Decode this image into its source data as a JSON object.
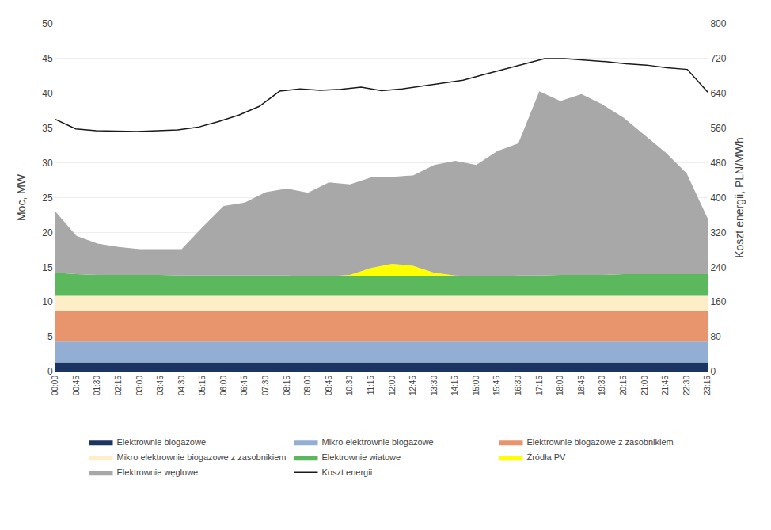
{
  "chart_data": {
    "type": "area",
    "stacked": true,
    "grid": true,
    "legend": "bottom",
    "x": [
      0,
      1,
      2,
      3,
      4,
      5,
      6,
      7,
      8,
      9,
      10,
      11,
      12,
      13,
      14,
      15,
      16,
      17,
      18,
      19,
      20,
      21,
      22,
      23,
      24,
      25,
      26,
      27,
      28,
      29,
      30,
      31
    ],
    "xlim": [
      0,
      31
    ],
    "xticks": [
      {
        "value": 0,
        "label": "00:00"
      },
      {
        "value": 1,
        "label": "00:45"
      },
      {
        "value": 2,
        "label": "01:30"
      },
      {
        "value": 3,
        "label": "02:15"
      },
      {
        "value": 4,
        "label": "03:00"
      },
      {
        "value": 5,
        "label": "03:45"
      },
      {
        "value": 6,
        "label": "04:30"
      },
      {
        "value": 7,
        "label": "05:15"
      },
      {
        "value": 8,
        "label": "06:00"
      },
      {
        "value": 9,
        "label": "06:45"
      },
      {
        "value": 10,
        "label": "07:30"
      },
      {
        "value": 11,
        "label": "08:15"
      },
      {
        "value": 12,
        "label": "09:00"
      },
      {
        "value": 13,
        "label": "09:45"
      },
      {
        "value": 14,
        "label": "10:30"
      },
      {
        "value": 15,
        "label": "11:15"
      },
      {
        "value": 16,
        "label": "12:00"
      },
      {
        "value": 17,
        "label": "12:45"
      },
      {
        "value": 18,
        "label": "13:30"
      },
      {
        "value": 19,
        "label": "14:15"
      },
      {
        "value": 20,
        "label": "15:00"
      },
      {
        "value": 21,
        "label": "15:45"
      },
      {
        "value": 22,
        "label": "16:30"
      },
      {
        "value": 23,
        "label": "17:15"
      },
      {
        "value": 24,
        "label": "18:00"
      },
      {
        "value": 25,
        "label": "18:45"
      },
      {
        "value": 26,
        "label": "19:30"
      },
      {
        "value": 27,
        "label": "20:15"
      },
      {
        "value": 28,
        "label": "21:00"
      },
      {
        "value": 29,
        "label": "21:45"
      },
      {
        "value": 30,
        "label": "22:30"
      },
      {
        "value": 31,
        "label": "23:15"
      }
    ],
    "y_label": "Moc, MW",
    "ylim": [
      0,
      50
    ],
    "yticks": [
      0,
      5,
      10,
      15,
      20,
      25,
      30,
      35,
      40,
      45,
      50
    ],
    "y2_label": "Koszt energii, PLN/MWh",
    "y2lim": [
      0,
      800
    ],
    "y2ticks": [
      0,
      80,
      160,
      240,
      320,
      400,
      480,
      560,
      640,
      720,
      800
    ],
    "series": [
      {
        "name": "Elektrownie biogazowe",
        "color": "#1c3461",
        "values": [
          1.3,
          1.3,
          1.3,
          1.3,
          1.3,
          1.3,
          1.3,
          1.3,
          1.3,
          1.3,
          1.3,
          1.3,
          1.3,
          1.3,
          1.3,
          1.3,
          1.3,
          1.3,
          1.3,
          1.3,
          1.3,
          1.3,
          1.3,
          1.3,
          1.3,
          1.3,
          1.3,
          1.3,
          1.3,
          1.3,
          1.3,
          1.3
        ]
      },
      {
        "name": "Mikro elektrownie biogazowe",
        "color": "#92aed3",
        "values": [
          3.0,
          3.0,
          3.0,
          3.0,
          3.0,
          3.0,
          3.0,
          3.0,
          3.0,
          3.0,
          3.0,
          3.0,
          3.0,
          3.0,
          3.0,
          3.0,
          3.0,
          3.0,
          3.0,
          3.0,
          3.0,
          3.0,
          3.0,
          3.0,
          3.0,
          3.0,
          3.0,
          3.0,
          3.0,
          3.0,
          3.0,
          3.0
        ]
      },
      {
        "name": "Elektrownie biogazowe z zasobnikiem",
        "color": "#e8956d",
        "values": [
          4.5,
          4.5,
          4.5,
          4.5,
          4.5,
          4.5,
          4.5,
          4.5,
          4.5,
          4.5,
          4.5,
          4.5,
          4.5,
          4.5,
          4.5,
          4.5,
          4.5,
          4.5,
          4.5,
          4.5,
          4.5,
          4.5,
          4.5,
          4.5,
          4.5,
          4.5,
          4.5,
          4.5,
          4.5,
          4.5,
          4.5,
          4.5
        ]
      },
      {
        "name": "Mikro elektrownie biogazowe z zasobnikiem",
        "color": "#fdeec8",
        "values": [
          2.2,
          2.2,
          2.2,
          2.2,
          2.2,
          2.2,
          2.2,
          2.2,
          2.2,
          2.2,
          2.2,
          2.2,
          2.2,
          2.2,
          2.2,
          2.2,
          2.2,
          2.2,
          2.2,
          2.2,
          2.2,
          2.2,
          2.2,
          2.2,
          2.2,
          2.2,
          2.2,
          2.2,
          2.2,
          2.2,
          2.2,
          2.2
        ]
      },
      {
        "name": "Elektrownie wiatowe",
        "color": "#5cb85c",
        "values": [
          3.2,
          3.0,
          2.9,
          2.9,
          2.9,
          2.9,
          2.8,
          2.8,
          2.8,
          2.8,
          2.8,
          2.8,
          2.7,
          2.7,
          2.7,
          2.7,
          2.7,
          2.7,
          2.7,
          2.7,
          2.7,
          2.7,
          2.8,
          2.8,
          2.9,
          2.9,
          2.9,
          3.0,
          3.0,
          3.0,
          3.0,
          3.0
        ]
      },
      {
        "name": "Źródła PV",
        "color": "#ffff00",
        "values": [
          0.0,
          0.0,
          0.0,
          0.0,
          0.0,
          0.0,
          0.0,
          0.0,
          0.0,
          0.0,
          0.0,
          0.0,
          0.0,
          0.0,
          0.2,
          1.2,
          1.8,
          1.5,
          0.5,
          0.1,
          0.0,
          0.0,
          0.0,
          0.0,
          0.0,
          0.0,
          0.0,
          0.0,
          0.0,
          0.0,
          0.0,
          0.0
        ]
      },
      {
        "name": "Elektrownie węglowe",
        "color": "#a8a8a8",
        "values": [
          8.8,
          5.5,
          4.5,
          4.0,
          3.7,
          3.7,
          3.8,
          7.0,
          10.0,
          10.5,
          12.0,
          12.5,
          12.0,
          13.5,
          13.0,
          13.0,
          12.5,
          13.0,
          15.5,
          16.5,
          16.0,
          18.0,
          19.0,
          26.5,
          25.0,
          26.0,
          24.5,
          22.5,
          20.0,
          17.5,
          14.5,
          8.0
        ]
      },
      {
        "name": "Koszt energii",
        "color": "#1a1a1a",
        "type": "line",
        "axis": "y2",
        "x": [
          0,
          0.96875,
          1.9375,
          2.90625,
          3.875,
          4.84375,
          5.8125,
          6.78125,
          7.75,
          8.71875,
          9.6875,
          10.65625,
          11.625,
          12.59375,
          13.5625,
          14.53125,
          15.5,
          16.46875,
          17.4375,
          18.40625,
          19.375,
          20.34375,
          21.3125,
          22.28125,
          23.25,
          24.21875,
          25.1875,
          26.15625,
          27.125,
          28.09375,
          29.0625,
          30.03125,
          31
        ],
        "values": [
          580,
          558,
          554,
          553,
          552,
          554,
          556,
          562,
          575,
          590,
          610,
          645,
          650,
          647,
          649,
          654,
          646,
          650,
          657,
          663,
          670,
          683,
          695,
          707,
          720,
          720,
          717,
          713,
          708,
          705,
          699,
          695,
          643
        ]
      }
    ]
  }
}
